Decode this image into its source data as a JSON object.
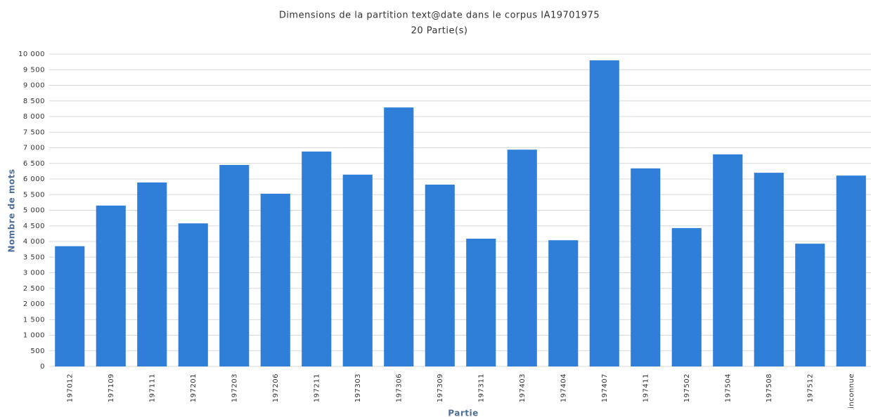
{
  "chart_data": {
    "type": "bar",
    "title": "Dimensions de la partition text@date dans le corpus IA19701975",
    "subtitle": "20 Partie(s)",
    "x_label": "Partie",
    "y_label": "Nombre de mots",
    "categories": [
      "197012",
      "197109",
      "197111",
      "197201",
      "197203",
      "197206",
      "197211",
      "197303",
      "197306",
      "197309",
      "197311",
      "197403",
      "197404",
      "197407",
      "197411",
      "197502",
      "197504",
      "197508",
      "197512",
      "inconnue"
    ],
    "values": [
      3850,
      5150,
      5890,
      4580,
      6450,
      5530,
      6880,
      6140,
      8290,
      5820,
      4090,
      6940,
      4040,
      9800,
      6340,
      4430,
      6790,
      6200,
      3930,
      6110
    ],
    "color": "#2f7ed8",
    "ylim": [
      0,
      10000
    ],
    "yticks": [
      0,
      500,
      {
        "value": 1000,
        "label": "1 000"
      },
      {
        "value": 1500,
        "label": "1 500"
      },
      {
        "value": 2000,
        "label": "2 000"
      },
      {
        "value": 2500,
        "label": "2 500"
      },
      {
        "value": 3000,
        "label": "3 000"
      },
      {
        "value": 3500,
        "label": "3 500"
      },
      {
        "value": 4000,
        "label": "4 000"
      },
      {
        "value": 4500,
        "label": "4 500"
      },
      {
        "value": 5000,
        "label": "5 000"
      },
      {
        "value": 5500,
        "label": "5 500"
      },
      {
        "value": 6000,
        "label": "6 000"
      },
      {
        "value": 6500,
        "label": "6 500"
      },
      {
        "value": 7000,
        "label": "7 000"
      },
      {
        "value": 7500,
        "label": "7 500"
      },
      {
        "value": 8000,
        "label": "8 000"
      },
      {
        "value": 8500,
        "label": "8 500"
      },
      {
        "value": 9000,
        "label": "9 000"
      },
      {
        "value": 9500,
        "label": "9 500"
      },
      {
        "value": 10000,
        "label": "10 000"
      }
    ],
    "grid": true
  }
}
